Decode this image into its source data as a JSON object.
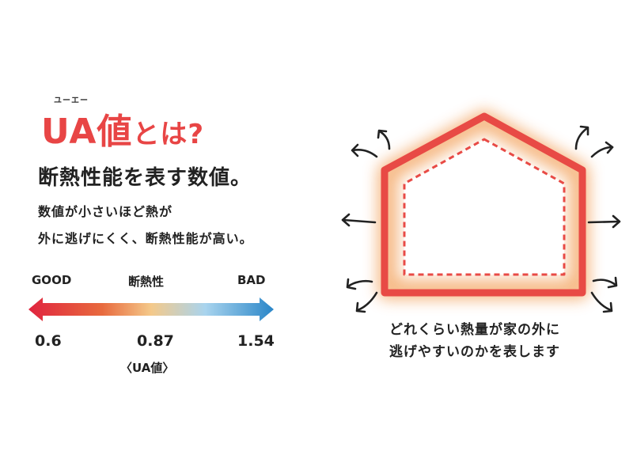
{
  "header": {
    "ruby": "ユーエー",
    "title_main": "UA値",
    "title_tail": "とは?",
    "subtitle": "断熱性能を表す数値。",
    "description_line1": "数値が小さいほど熱が",
    "description_line2": "外に逃げにくく、断熱性能が高い。"
  },
  "scale": {
    "left_label": "GOOD",
    "center_label": "断熱性",
    "right_label": "BAD",
    "values": [
      "0.6",
      "0.87",
      "1.54"
    ],
    "unit_label": "〈UA値〉",
    "colors": [
      "#e0243f",
      "#e86a3e",
      "#f4c98a",
      "#a9d4ee",
      "#2a86c8"
    ]
  },
  "house": {
    "outline_color": "#e84a45",
    "glow_color": "#f5b37a",
    "arrow_icon": "heat-loss-arrow-icon"
  },
  "caption": {
    "line1": "どれくらい熱量が家の外に",
    "line2": "逃げやすいのかを表します"
  }
}
